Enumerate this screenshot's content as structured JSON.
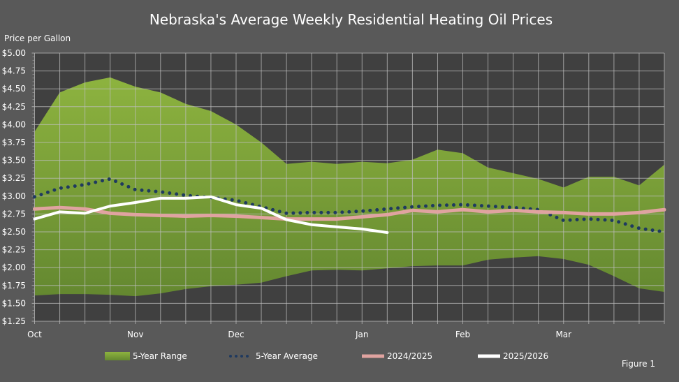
{
  "chart_data": {
    "type": "line",
    "title": "Nebraska's Average Weekly Residential Heating Oil Prices",
    "ylabel": "Price per Gallon",
    "xlabel": "",
    "ylim": [
      1.25,
      5.0
    ],
    "yticks": [
      "$1.25",
      "$1.50",
      "$1.75",
      "$2.00",
      "$2.25",
      "$2.50",
      "$2.75",
      "$3.00",
      "$3.25",
      "$3.50",
      "$3.75",
      "$4.00",
      "$4.25",
      "$4.50",
      "$4.75",
      "$5.00"
    ],
    "x_month_labels": [
      {
        "label": "Oct",
        "week": 0
      },
      {
        "label": "Nov",
        "week": 4
      },
      {
        "label": "Dec",
        "week": 8
      },
      {
        "label": "Jan",
        "week": 13
      },
      {
        "label": "Feb",
        "week": 17
      },
      {
        "label": "Mar",
        "week": 21
      }
    ],
    "weeks": 26,
    "grid": true,
    "legend_position": "bottom",
    "range": {
      "name": "5-Year Range",
      "color": "#7fa33a",
      "upper": [
        3.9,
        4.45,
        4.59,
        4.66,
        4.53,
        4.45,
        4.29,
        4.19,
        4.0,
        3.75,
        3.45,
        3.48,
        3.45,
        3.48,
        3.46,
        3.51,
        3.65,
        3.6,
        3.4,
        3.32,
        3.24,
        3.12,
        3.27,
        3.27,
        3.15,
        3.44
      ],
      "lower": [
        1.61,
        1.63,
        1.63,
        1.62,
        1.6,
        1.64,
        1.7,
        1.74,
        1.76,
        1.79,
        1.88,
        1.96,
        1.97,
        1.96,
        1.99,
        2.02,
        2.03,
        2.03,
        2.11,
        2.14,
        2.16,
        2.12,
        2.04,
        1.88,
        1.71,
        1.66
      ]
    },
    "series": [
      {
        "name": "5-Year Average",
        "color": "#1f3a5f",
        "style": "dotted",
        "values": [
          2.99,
          3.11,
          3.16,
          3.24,
          3.09,
          3.06,
          3.01,
          2.98,
          2.94,
          2.85,
          2.76,
          2.77,
          2.77,
          2.79,
          2.82,
          2.85,
          2.87,
          2.88,
          2.86,
          2.84,
          2.81,
          2.66,
          2.68,
          2.66,
          2.55,
          2.5
        ]
      },
      {
        "name": "2024/2025",
        "color": "#e0a3a0",
        "style": "solid",
        "values": [
          2.82,
          2.84,
          2.82,
          2.76,
          2.74,
          2.73,
          2.72,
          2.73,
          2.72,
          2.7,
          2.68,
          2.68,
          2.68,
          2.71,
          2.74,
          2.8,
          2.78,
          2.81,
          2.78,
          2.8,
          2.78,
          2.77,
          2.75,
          2.75,
          2.77,
          2.81
        ]
      },
      {
        "name": "2025/2026",
        "color": "#ffffff",
        "style": "solid",
        "values": [
          2.68,
          2.78,
          2.76,
          2.86,
          2.91,
          2.97,
          2.97,
          2.99,
          2.88,
          2.83,
          2.67,
          2.6,
          2.57,
          2.54,
          2.49
        ]
      }
    ]
  },
  "figure_label": "Figure 1"
}
